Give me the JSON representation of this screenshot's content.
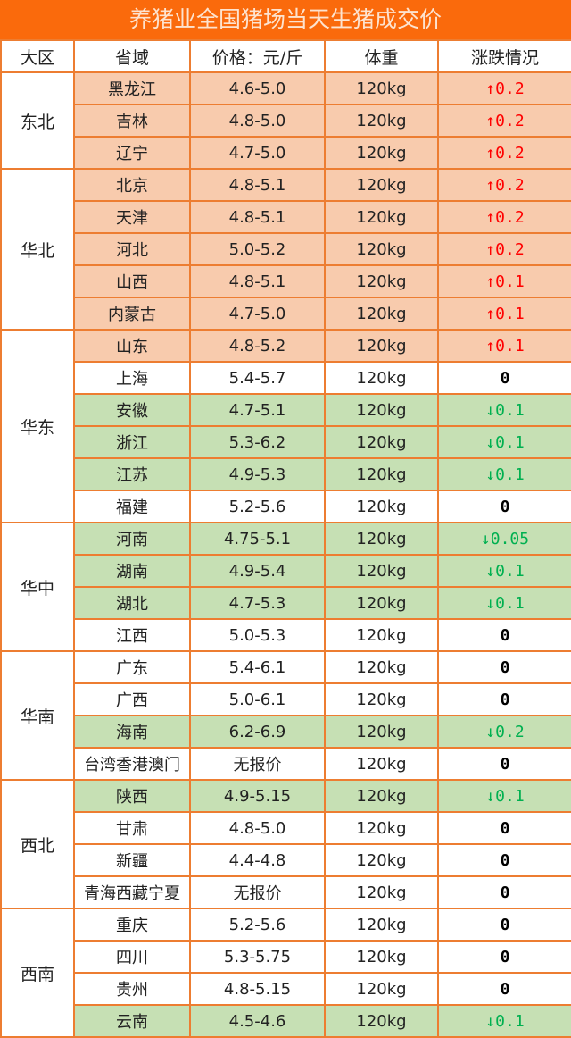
{
  "title": "养猪业全国猪场当天生猪成交价",
  "headers": [
    "大区",
    "省域",
    "价格：元/斤",
    "体重",
    "涨跌情况"
  ],
  "colors": {
    "title_bg": "#fa6a0c",
    "up_row": "#f8cbad",
    "down_row": "#c6e0b4",
    "border": "#ed7d31",
    "up_text": "#ff0000",
    "down_text": "#00b050"
  },
  "regions": [
    {
      "name": "东北",
      "rows": [
        {
          "province": "黑龙江",
          "price": "4.6-5.0",
          "weight": "120kg",
          "change": "0.2",
          "dir": "up"
        },
        {
          "province": "吉林",
          "price": "4.8-5.0",
          "weight": "120kg",
          "change": "0.2",
          "dir": "up"
        },
        {
          "province": "辽宁",
          "price": "4.7-5.0",
          "weight": "120kg",
          "change": "0.2",
          "dir": "up"
        }
      ]
    },
    {
      "name": "华北",
      "rows": [
        {
          "province": "北京",
          "price": "4.8-5.1",
          "weight": "120kg",
          "change": "0.2",
          "dir": "up"
        },
        {
          "province": "天津",
          "price": "4.8-5.1",
          "weight": "120kg",
          "change": "0.2",
          "dir": "up"
        },
        {
          "province": "河北",
          "price": "5.0-5.2",
          "weight": "120kg",
          "change": "0.2",
          "dir": "up"
        },
        {
          "province": "山西",
          "price": "4.8-5.1",
          "weight": "120kg",
          "change": "0.1",
          "dir": "up"
        },
        {
          "province": "内蒙古",
          "price": "4.7-5.0",
          "weight": "120kg",
          "change": "0.1",
          "dir": "up"
        }
      ]
    },
    {
      "name": "华东",
      "rows": [
        {
          "province": "山东",
          "price": "4.8-5.2",
          "weight": "120kg",
          "change": "0.1",
          "dir": "up"
        },
        {
          "province": "上海",
          "price": "5.4-5.7",
          "weight": "120kg",
          "change": "0",
          "dir": "none"
        },
        {
          "province": "安徽",
          "price": "4.7-5.1",
          "weight": "120kg",
          "change": "0.1",
          "dir": "down"
        },
        {
          "province": "浙江",
          "price": "5.3-6.2",
          "weight": "120kg",
          "change": "0.1",
          "dir": "down"
        },
        {
          "province": "江苏",
          "price": "4.9-5.3",
          "weight": "120kg",
          "change": "0.1",
          "dir": "down"
        },
        {
          "province": "福建",
          "price": "5.2-5.6",
          "weight": "120kg",
          "change": "0",
          "dir": "none"
        }
      ]
    },
    {
      "name": "华中",
      "rows": [
        {
          "province": "河南",
          "price": "4.75-5.1",
          "weight": "120kg",
          "change": "0.05",
          "dir": "down"
        },
        {
          "province": "湖南",
          "price": "4.9-5.4",
          "weight": "120kg",
          "change": "0.1",
          "dir": "down"
        },
        {
          "province": "湖北",
          "price": "4.7-5.3",
          "weight": "120kg",
          "change": "0.1",
          "dir": "down"
        },
        {
          "province": "江西",
          "price": "5.0-5.3",
          "weight": "120kg",
          "change": "0",
          "dir": "none"
        }
      ]
    },
    {
      "name": "华南",
      "rows": [
        {
          "province": "广东",
          "price": "5.4-6.1",
          "weight": "120kg",
          "change": "0",
          "dir": "none"
        },
        {
          "province": "广西",
          "price": "5.0-6.1",
          "weight": "120kg",
          "change": "0",
          "dir": "none"
        },
        {
          "province": "海南",
          "price": "6.2-6.9",
          "weight": "120kg",
          "change": "0.2",
          "dir": "down"
        },
        {
          "province": "台湾香港澳门",
          "price": "无报价",
          "weight": "120kg",
          "change": "0",
          "dir": "none"
        }
      ]
    },
    {
      "name": "西北",
      "rows": [
        {
          "province": "陕西",
          "price": "4.9-5.15",
          "weight": "120kg",
          "change": "0.1",
          "dir": "down"
        },
        {
          "province": "甘肃",
          "price": "4.8-5.0",
          "weight": "120kg",
          "change": "0",
          "dir": "none"
        },
        {
          "province": "新疆",
          "price": "4.4-4.8",
          "weight": "120kg",
          "change": "0",
          "dir": "none"
        },
        {
          "province": "青海西藏宁夏",
          "price": "无报价",
          "weight": "120kg",
          "change": "0",
          "dir": "none"
        }
      ]
    },
    {
      "name": "西南",
      "rows": [
        {
          "province": "重庆",
          "price": "5.2-5.6",
          "weight": "120kg",
          "change": "0",
          "dir": "none"
        },
        {
          "province": "四川",
          "price": "5.3-5.75",
          "weight": "120kg",
          "change": "0",
          "dir": "none"
        },
        {
          "province": "贵州",
          "price": "4.8-5.15",
          "weight": "120kg",
          "change": "0",
          "dir": "none"
        },
        {
          "province": "云南",
          "price": "4.5-4.6",
          "weight": "120kg",
          "change": "0.1",
          "dir": "down"
        }
      ]
    }
  ]
}
